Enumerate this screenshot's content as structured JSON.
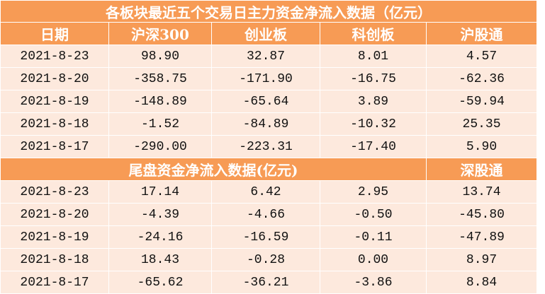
{
  "title": "各板块最近五个交易日主力资金净流入数据（亿元）",
  "header": [
    "日期",
    "沪深300",
    "创业板",
    "科创板",
    "沪股通"
  ],
  "rows": [
    [
      "2021-8-23",
      "98.90",
      "32.87",
      "8.01",
      "4.57"
    ],
    [
      "2021-8-20",
      "-358.75",
      "-171.90",
      "-16.75",
      "-62.36"
    ],
    [
      "2021-8-19",
      "-148.89",
      "-65.64",
      "3.89",
      "-59.94"
    ],
    [
      "2021-8-18",
      "-1.52",
      "-84.89",
      "-10.32",
      "25.35"
    ],
    [
      "2021-8-17",
      "-290.00",
      "-223.31",
      "-17.40",
      "5.90"
    ]
  ],
  "subheader": {
    "title": "尾盘资金净流入数据(亿元)",
    "last": "深股通"
  },
  "rows2": [
    [
      "2021-8-23",
      "17.14",
      "6.42",
      "2.95",
      "13.74"
    ],
    [
      "2021-8-20",
      "-4.39",
      "-4.66",
      "-0.50",
      "-45.80"
    ],
    [
      "2021-8-19",
      "-24.16",
      "-16.59",
      "-0.11",
      "-47.89"
    ],
    [
      "2021-8-18",
      "18.43",
      "-0.28",
      "0.00",
      "8.97"
    ],
    [
      "2021-8-17",
      "-65.62",
      "-36.21",
      "-3.86",
      "8.84"
    ]
  ]
}
